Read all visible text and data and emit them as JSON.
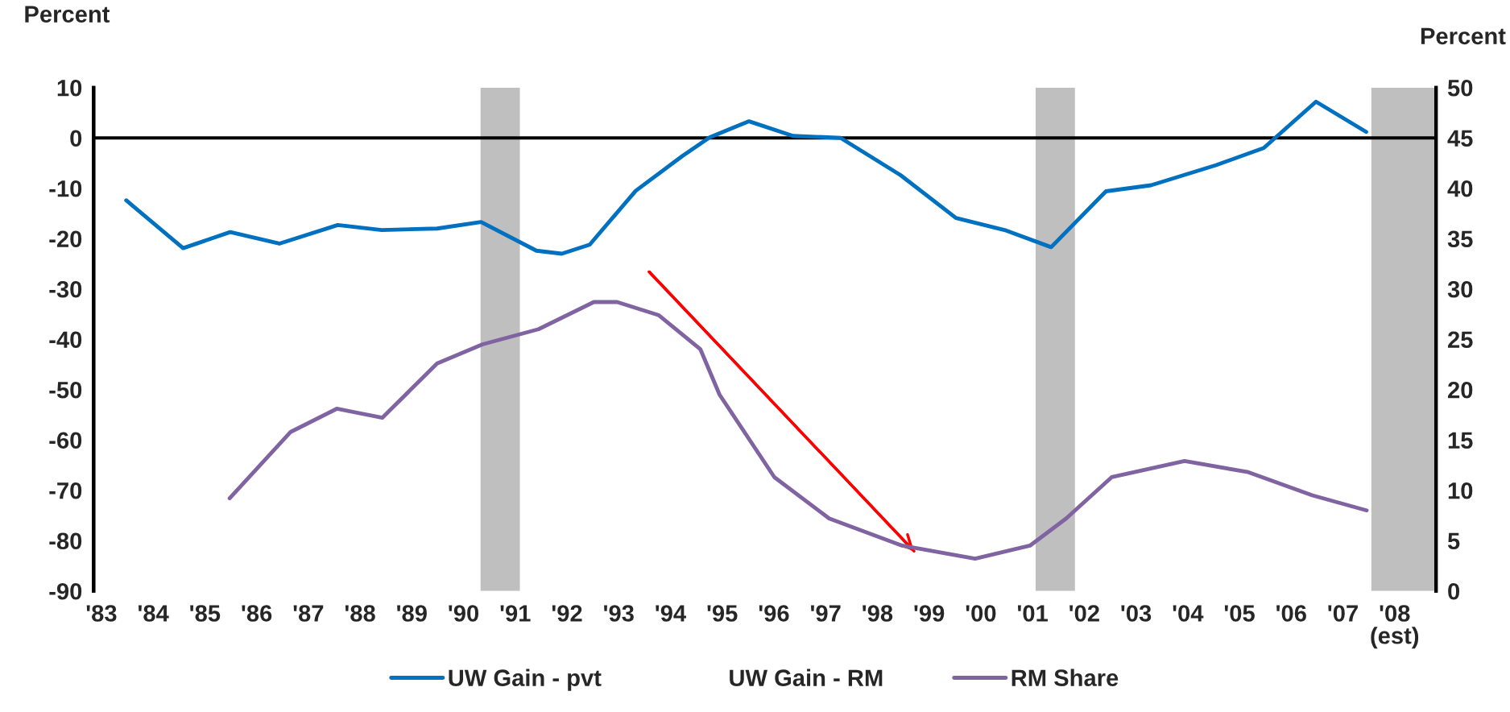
{
  "chart_data": {
    "type": "line",
    "ylabel": "Percent",
    "y2label": "Percent",
    "xlim": [
      1982.85,
      2008.8
    ],
    "xticks": [
      {
        "value": 1983,
        "label": "'83"
      },
      {
        "value": 1984,
        "label": "'84"
      },
      {
        "value": 1985,
        "label": "'85"
      },
      {
        "value": 1986,
        "label": "'86"
      },
      {
        "value": 1987,
        "label": "'87"
      },
      {
        "value": 1988,
        "label": "'88"
      },
      {
        "value": 1989,
        "label": "'89"
      },
      {
        "value": 1990,
        "label": "'90"
      },
      {
        "value": 1991,
        "label": "'91"
      },
      {
        "value": 1992,
        "label": "'92"
      },
      {
        "value": 1993,
        "label": "'93"
      },
      {
        "value": 1994,
        "label": "'94"
      },
      {
        "value": 1995,
        "label": "'95"
      },
      {
        "value": 1996,
        "label": "'96"
      },
      {
        "value": 1997,
        "label": "'97"
      },
      {
        "value": 1998,
        "label": "'98"
      },
      {
        "value": 1999,
        "label": "'99"
      },
      {
        "value": 2000,
        "label": "'00"
      },
      {
        "value": 2001,
        "label": "'01"
      },
      {
        "value": 2002,
        "label": "'02"
      },
      {
        "value": 2003,
        "label": "'03"
      },
      {
        "value": 2004,
        "label": "'04"
      },
      {
        "value": 2005,
        "label": "'05"
      },
      {
        "value": 2006,
        "label": "'06"
      },
      {
        "value": 2007,
        "label": "'07"
      },
      {
        "value": 2008,
        "label": "'08"
      }
    ],
    "annotations": [
      "(est)"
    ],
    "ylim": [
      -90,
      10
    ],
    "yticks": [
      -90,
      -80,
      -70,
      -60,
      -50,
      -40,
      -30,
      -20,
      -10,
      0,
      10
    ],
    "y2lim": [
      0,
      50
    ],
    "y2ticks": [
      0,
      5,
      10,
      15,
      20,
      25,
      30,
      35,
      40,
      45,
      50
    ],
    "grid": false,
    "legend": "bottom",
    "marker": "none",
    "line_style": "solid",
    "series": [
      {
        "name": "UW Gain - pvt",
        "color": "#0070c0",
        "x": [
          1983.48,
          1984.58,
          1985.49,
          1986.44,
          1987.57,
          1988.42,
          1989.49,
          1990.34,
          1991.41,
          1991.9,
          1992.44,
          1993.33,
          1994.23,
          1994.76,
          1995.52,
          1996.37,
          1997.29,
          1998.45,
          1999.52,
          2000.49,
          2001.36,
          2002.42,
          2003.29,
          2004.55,
          2005.47,
          2006.48,
          2007.45
        ],
        "values": [
          -12.4,
          -21.9,
          -18.7,
          -21.0,
          -17.3,
          -18.3,
          -18.0,
          -16.7,
          -22.4,
          -23.0,
          -21.2,
          -10.5,
          -3.6,
          0.1,
          3.3,
          0.4,
          0.0,
          -7.4,
          -15.9,
          -18.4,
          -21.7,
          -10.6,
          -9.4,
          -5.4,
          -2.0,
          7.2,
          1.2
        ]
      },
      {
        "name": "UW Gain - RM"
      },
      {
        "type": "line",
        "color": "#ff0000",
        "x": [
          1993.59,
          1998.71
        ],
        "values": [
          -26.6,
          -82.1
        ]
      },
      {
        "name": "RM Share",
        "color": "#8064a2",
        "axis": "y2",
        "x": [
          1985.48,
          1986.66,
          1987.55,
          1988.43,
          1989.49,
          1990.37,
          1991.45,
          1992.52,
          1992.97,
          1993.77,
          1994.58,
          1994.95,
          1996.01,
          1997.07,
          1998.48,
          1999.89,
          2000.95,
          2001.65,
          2002.53,
          2003.94,
          2005.17,
          2006.41,
          2007.46
        ],
        "values": [
          9.2,
          15.8,
          18.1,
          17.2,
          22.6,
          24.5,
          26.0,
          28.7,
          28.7,
          27.4,
          24.0,
          19.5,
          11.3,
          7.2,
          4.5,
          3.2,
          4.5,
          7.2,
          11.3,
          12.9,
          11.8,
          9.5,
          8.0
        ]
      }
    ],
    "ref_lines": [
      {
        "axis": "y",
        "value": 0,
        "color": "#000000",
        "line_style": "solid"
      }
    ],
    "bands": [
      {
        "axis": "x",
        "from": 1990.33,
        "to": 1991.09,
        "color": "#bfbfbf"
      },
      {
        "axis": "x",
        "from": 2001.06,
        "to": 2001.82,
        "color": "#bfbfbf"
      },
      {
        "axis": "x",
        "from": 2007.55,
        "to": 2008.8,
        "color": "#bfbfbf"
      }
    ]
  }
}
